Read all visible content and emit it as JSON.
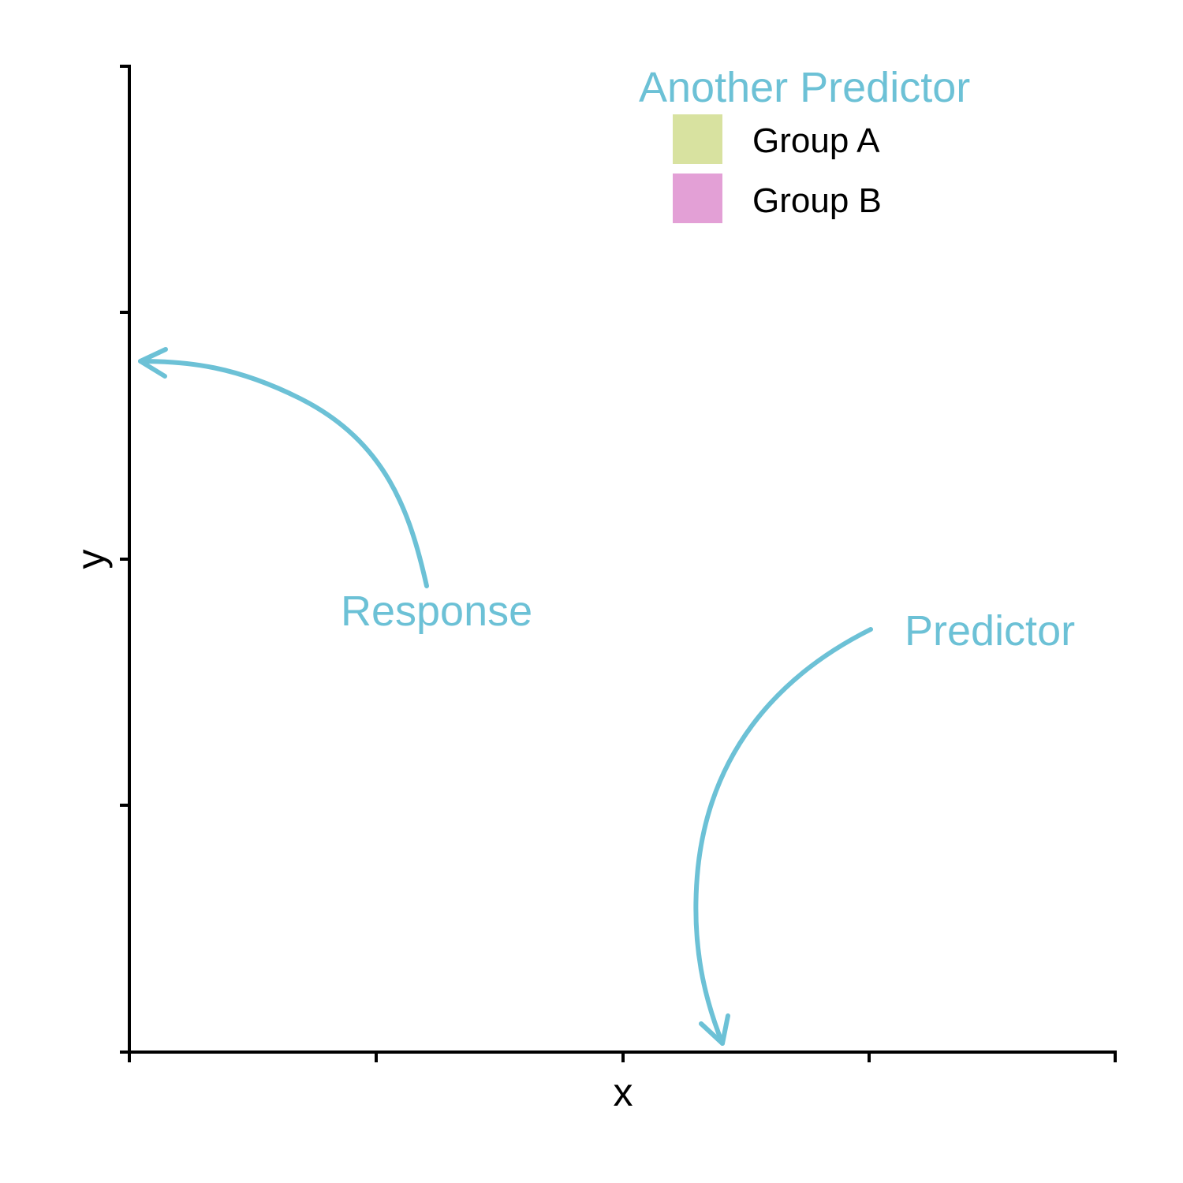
{
  "colors": {
    "annotation": "#6cc1d6",
    "axis": "#000000",
    "group_a": "#d8e2a0",
    "group_b": "#e3a0d6"
  },
  "axes": {
    "x_label": "x",
    "y_label": "y"
  },
  "annotations": {
    "response": "Response",
    "predictor": "Predictor"
  },
  "legend": {
    "title": "Another Predictor",
    "items": [
      {
        "label": "Group A"
      },
      {
        "label": "Group B"
      }
    ]
  }
}
